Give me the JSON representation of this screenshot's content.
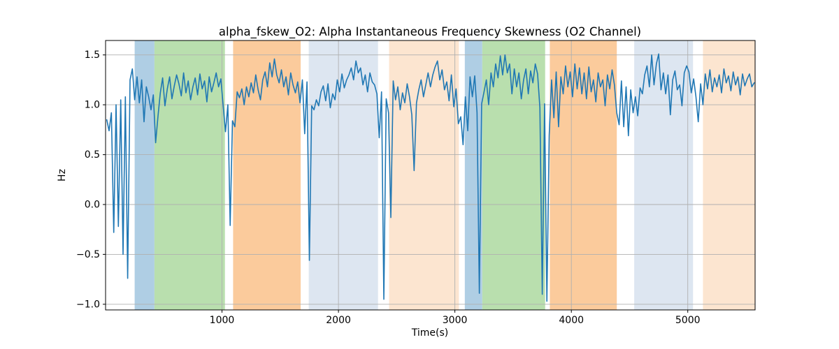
{
  "chart_data": {
    "type": "line",
    "title": "alpha_fskew_O2: Alpha Instantaneous Frequency Skewness (O2 Channel)",
    "xlabel": "Time(s)",
    "ylabel": "Hz",
    "xlim": [
      0,
      5578
    ],
    "ylim": [
      -1.057,
      1.645
    ],
    "xticks": [
      1000,
      2000,
      3000,
      4000,
      5000
    ],
    "yticks": [
      -1.0,
      -0.5,
      0.0,
      0.5,
      1.0,
      1.5
    ],
    "grid": true,
    "grid_color": "#b0b0b0",
    "line_color": "#1f77b4",
    "background_color": "#ffffff",
    "legend": "none",
    "bands": [
      {
        "start": 250,
        "end": 420,
        "color": "#afcee4"
      },
      {
        "start": 420,
        "end": 1025,
        "color": "#b9dfae"
      },
      {
        "start": 1095,
        "end": 1675,
        "color": "#fbcb9c"
      },
      {
        "start": 1745,
        "end": 2340,
        "color": "#dde6f1"
      },
      {
        "start": 2435,
        "end": 3035,
        "color": "#fce5d0"
      },
      {
        "start": 3085,
        "end": 3235,
        "color": "#afcee4"
      },
      {
        "start": 3235,
        "end": 3775,
        "color": "#b9dfae"
      },
      {
        "start": 3815,
        "end": 4390,
        "color": "#fbcb9c"
      },
      {
        "start": 4540,
        "end": 5045,
        "color": "#dde6f1"
      },
      {
        "start": 5130,
        "end": 5578,
        "color": "#fce5d0"
      }
    ],
    "series": [
      {
        "name": "alpha_fskew_O2",
        "x_start": 10,
        "x_step": 20,
        "y": [
          0.85,
          0.74,
          0.92,
          -0.28,
          1.0,
          -0.22,
          1.05,
          -0.5,
          1.08,
          -0.74,
          1.25,
          1.36,
          1.05,
          1.28,
          1.02,
          1.25,
          0.83,
          1.18,
          1.08,
          0.95,
          1.1,
          0.62,
          0.88,
          1.12,
          1.27,
          0.99,
          1.16,
          1.28,
          1.06,
          1.19,
          1.3,
          1.21,
          1.09,
          1.32,
          1.12,
          1.24,
          1.05,
          1.18,
          1.27,
          1.1,
          1.31,
          1.16,
          1.24,
          1.03,
          1.28,
          1.13,
          1.22,
          1.32,
          1.18,
          1.26,
          0.99,
          0.73,
          1.0,
          -0.21,
          0.84,
          0.78,
          1.13,
          1.07,
          1.16,
          1.0,
          1.18,
          1.08,
          1.22,
          1.12,
          1.3,
          1.15,
          1.05,
          1.25,
          1.33,
          1.18,
          1.42,
          1.28,
          1.46,
          1.3,
          1.22,
          1.35,
          1.18,
          1.28,
          1.1,
          1.32,
          1.2,
          1.12,
          1.23,
          1.02,
          1.25,
          0.71,
          1.23,
          -0.56,
          0.99,
          0.95,
          1.05,
          0.99,
          1.13,
          1.19,
          1.04,
          1.21,
          0.97,
          1.11,
          1.05,
          1.25,
          1.13,
          1.31,
          1.17,
          1.25,
          1.3,
          1.37,
          1.25,
          1.44,
          1.32,
          1.37,
          1.2,
          1.3,
          1.13,
          1.32,
          1.23,
          1.2,
          1.11,
          0.67,
          1.13,
          -0.95,
          1.06,
          0.92,
          -0.13,
          1.24,
          1.05,
          1.18,
          0.95,
          1.12,
          1.02,
          1.21,
          1.08,
          0.9,
          0.34,
          1.02,
          1.15,
          1.25,
          1.08,
          1.2,
          1.32,
          1.18,
          1.3,
          1.38,
          1.44,
          1.25,
          1.35,
          1.15,
          1.23,
          1.04,
          1.3,
          0.98,
          1.16,
          0.81,
          0.88,
          0.6,
          1.08,
          0.74,
          1.28,
          1.08,
          1.29,
          0.92,
          -0.89,
          1.01,
          1.13,
          1.25,
          1.0,
          1.32,
          1.18,
          1.41,
          1.27,
          1.49,
          1.3,
          1.5,
          1.32,
          1.41,
          1.11,
          1.36,
          1.18,
          1.32,
          1.06,
          1.25,
          1.36,
          1.11,
          1.34,
          1.22,
          1.41,
          1.31,
          0.97,
          -0.9,
          1.01,
          -0.97,
          0.69,
          1.25,
          0.87,
          1.33,
          0.78,
          1.28,
          1.11,
          1.39,
          1.18,
          1.33,
          1.08,
          1.41,
          1.16,
          1.37,
          1.11,
          1.32,
          1.06,
          1.38,
          1.13,
          1.25,
          1.03,
          1.32,
          1.18,
          1.25,
          0.99,
          1.3,
          1.16,
          1.35,
          1.2,
          0.92,
          0.8,
          1.24,
          0.78,
          1.18,
          0.69,
          1.15,
          0.92,
          1.08,
          0.89,
          1.17,
          1.11,
          1.3,
          1.39,
          1.18,
          1.5,
          1.2,
          1.41,
          1.51,
          1.15,
          1.32,
          1.11,
          1.3,
          0.9,
          1.25,
          1.34,
          1.15,
          1.2,
          0.99,
          1.32,
          1.39,
          1.33,
          1.12,
          1.26,
          1.08,
          0.83,
          1.21,
          1.0,
          1.31,
          1.16,
          1.35,
          1.13,
          1.27,
          1.18,
          1.3,
          1.12,
          1.36,
          1.22,
          1.29,
          1.14,
          1.33,
          1.2,
          1.28,
          1.1,
          1.31,
          1.19,
          1.26,
          1.31,
          1.18,
          1.22
        ]
      }
    ]
  }
}
